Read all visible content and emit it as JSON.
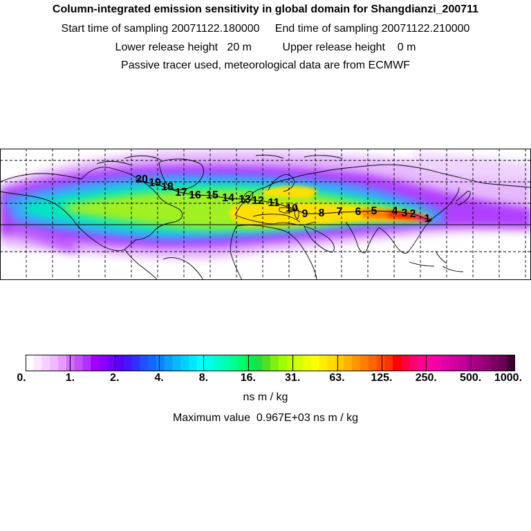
{
  "header": {
    "title": "Column-integrated emission sensitivity in global domain for Shangdianzi_200711",
    "sampling": "Start time of sampling 20071122.180000     End time of sampling 20071122.210000",
    "release": "Lower release height   20 m          Upper release height    0 m",
    "tracer": "Passive tracer used, meteorological data are from ECMWF"
  },
  "map": {
    "trajectory_labels": [
      "1",
      "2",
      "3",
      "4",
      "5",
      "6",
      "7",
      "8",
      "9",
      "10",
      "11",
      "12",
      "13",
      "14",
      "15",
      "16",
      "17",
      "18",
      "19",
      "20"
    ]
  },
  "colorbar": {
    "tick_labels": [
      "0.",
      "1.",
      "2.",
      "4.",
      "8.",
      "16.",
      "31.",
      "63.",
      "125.",
      "250.",
      "500.",
      "1000."
    ],
    "colors": [
      "#ffffff",
      "#fbe7ff",
      "#f5cfff",
      "#f0b8ff",
      "#e79bff",
      "#d36bff",
      "#c24fff",
      "#b030ff",
      "#a000ff",
      "#8a00ff",
      "#7200ff",
      "#5a00ff",
      "#4417ff",
      "#3030ff",
      "#2050ff",
      "#1068ff",
      "#0a84ff",
      "#0aa0ff",
      "#0ab8ff",
      "#00d0ff",
      "#00e8ff",
      "#00ffff",
      "#00ffe6",
      "#00ffcc",
      "#00ffb0",
      "#00ff8f",
      "#00ff6a",
      "#00f050",
      "#20e040",
      "#50e020",
      "#80f010",
      "#a0ff00",
      "#c0ff00",
      "#d8ff00",
      "#eeff00",
      "#ffff00",
      "#ffee00",
      "#ffdd00",
      "#ffc800",
      "#ffb000",
      "#ff9800",
      "#ff8000",
      "#ff6600",
      "#ff4c00",
      "#ff3300",
      "#ff0000",
      "#ff0040",
      "#ff0070",
      "#ff0090",
      "#ff00a0",
      "#f000a8",
      "#e000a8",
      "#d000a0",
      "#c00098",
      "#b00090",
      "#a00080",
      "#900070",
      "#7c0060",
      "#6a0055",
      "#3a0030"
    ],
    "units": "ns m / kg"
  },
  "max_value": "Maximum value  0.967E+03 ns m / kg"
}
